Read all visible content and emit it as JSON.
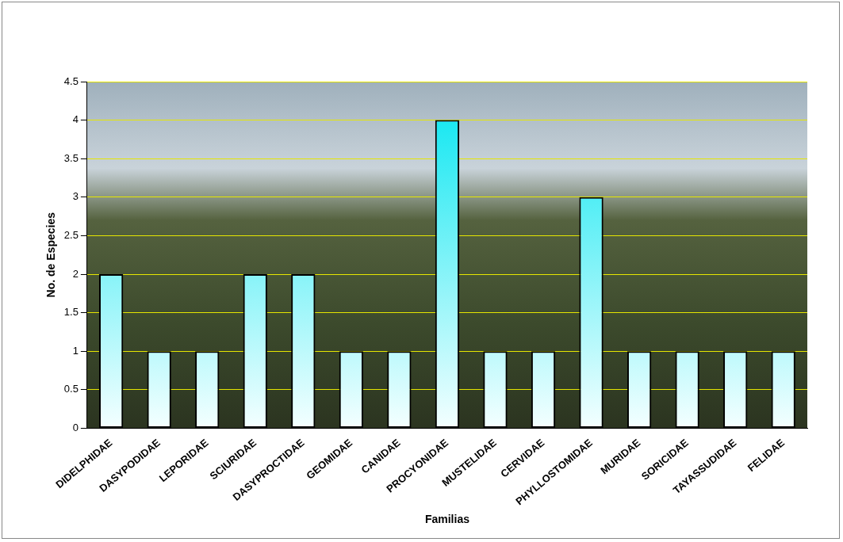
{
  "chart_data": {
    "type": "bar",
    "x_label": "Familias",
    "y_label": "No. de Especies",
    "categories": [
      "DIDELPHIDAE",
      "DASYPODIDAE",
      "LEPORIDAE",
      "SCIURIDAE",
      "DASYPROCTIDAE",
      "GEOMIDAE",
      "CANIDAE",
      "PROCYONIDAE",
      "MUSTELIDAE",
      "CERVIDAE",
      "PHYLLOSTOMIDAE",
      "MURIDAE",
      "SORICIDAE",
      "TAYASSUDIDAE",
      "FELIDAE"
    ],
    "values": [
      2,
      1,
      1,
      2,
      2,
      1,
      1,
      4,
      1,
      1,
      3,
      1,
      1,
      1,
      1
    ],
    "color": "#00e5f0",
    "ylim": [
      0,
      4.5
    ],
    "yticks": [
      0,
      0.5,
      1,
      1.5,
      2,
      2.5,
      3,
      3.5,
      4,
      4.5
    ],
    "grid": true
  }
}
